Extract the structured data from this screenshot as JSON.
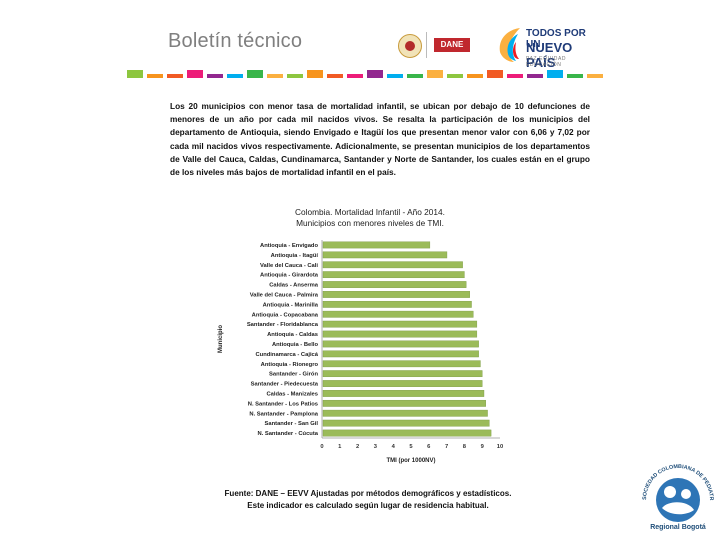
{
  "header": {
    "title": "Boletín técnico",
    "dane_label": "DANE",
    "campaign_line1": "TODOS POR UN",
    "campaign_line2": "NUEVO PAÍS",
    "campaign_tagline": "PAZ  EQUIDAD  EDUCACIÓN",
    "stripe_colors": [
      "#8dc63f",
      "#f7941d",
      "#f15a24",
      "#ed1c79",
      "#92278f",
      "#00aeef",
      "#39b54a",
      "#fbb040"
    ]
  },
  "body": {
    "paragraph": "Los 20 municipios con menor tasa de mortalidad infantil, se ubican por debajo de 10 defunciones de menores de un año por cada mil nacidos vivos. Se resalta la participación de los municipios del departamento de Antioquia, siendo Envigado e Itagüí los que presentan menor valor con 6,06 y 7,02 por cada mil nacidos vivos respectivamente. Adicionalmente, se presentan municipios de los departamentos de Valle del Cauca, Caldas, Cundinamarca, Santander y Norte de Santander, los cuales están en el grupo de los niveles más bajos de mortalidad infantil en el país."
  },
  "chart_data": {
    "type": "bar",
    "orientation": "horizontal",
    "title": "Colombia. Mortalidad Infantil - Año 2014.",
    "subtitle": "Municipios con menores niveles de TMI.",
    "xlabel": "TMI (por 1000NV)",
    "ylabel": "Municipio",
    "xlim": [
      0,
      10
    ],
    "xticks": [
      "0",
      "1",
      "2",
      "3",
      "4",
      "5",
      "6",
      "7",
      "8",
      "9",
      "10"
    ],
    "categories": [
      "Antioquia - Envigado",
      "Antioquia - Itagüí",
      "Valle del Cauca - Cali",
      "Antioquia - Girardota",
      "Caldas - Anserma",
      "Valle del Cauca - Palmira",
      "Antioquia - Marinilla",
      "Antioquia - Copacabana",
      "Santander - Floridablanca",
      "Antioquia - Caldas",
      "Antioquia - Bello",
      "Cundinamarca - Cajicá",
      "Antioquia - Rionegro",
      "Santander - Girón",
      "Santander - Piedecuesta",
      "Caldas - Manizales",
      "N. Santander - Los Patios",
      "N. Santander - Pamplona",
      "Santander - San Gil",
      "N. Santander - Cúcuta"
    ],
    "values": [
      6.06,
      7.02,
      7.9,
      8.0,
      8.1,
      8.3,
      8.4,
      8.5,
      8.7,
      8.7,
      8.8,
      8.8,
      8.9,
      9.0,
      9.0,
      9.1,
      9.2,
      9.3,
      9.4,
      9.5
    ],
    "bar_color": "#9bbb59",
    "grid": false
  },
  "footer": {
    "source_line1": "Fuente: DANE – EEVV Ajustadas por métodos demográficos y estadísticos.",
    "source_line2": "Este indicador es calculado según lugar de residencia habitual.",
    "society_name": "SOCIEDAD COLOMBIANA DE PEDIATRÍA",
    "region": "Regional Bogotá"
  }
}
